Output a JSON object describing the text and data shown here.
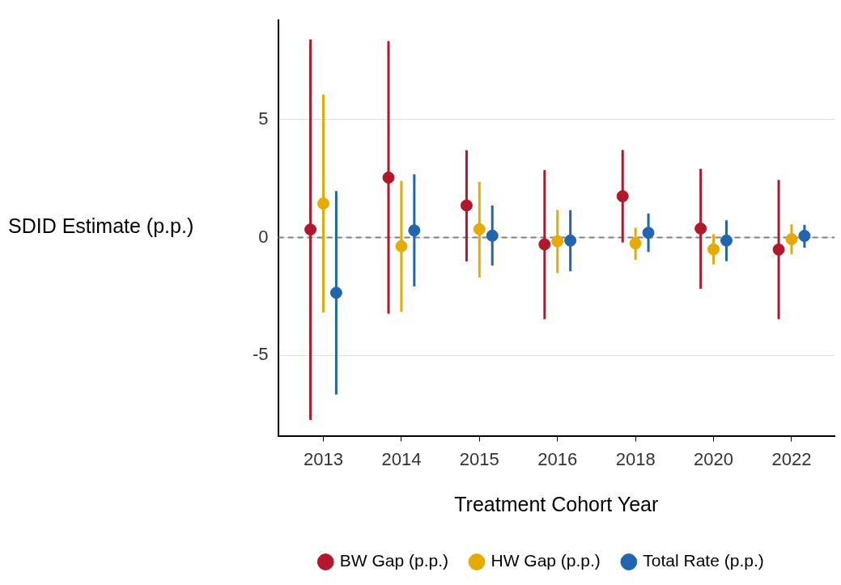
{
  "chart_data": {
    "type": "scatter",
    "xlabel": "Treatment Cohort Year",
    "ylabel": "SDID Estimate (p.p.)",
    "categories": [
      "2013",
      "2014",
      "2015",
      "2016",
      "2018",
      "2020",
      "2022"
    ],
    "series": [
      {
        "name": "BW Gap (p.p.)",
        "color": "#b2182b",
        "values": [
          0.34,
          2.54,
          1.36,
          -0.29,
          1.75,
          0.38,
          -0.51
        ],
        "errors": [
          [
            -7.73,
            8.39
          ],
          [
            -3.23,
            8.32
          ],
          [
            -1.01,
            3.7
          ],
          [
            -3.46,
            2.86
          ],
          [
            -0.21,
            3.71
          ],
          [
            -2.17,
            2.91
          ],
          [
            -3.46,
            2.44
          ]
        ]
      },
      {
        "name": "HW Gap (p.p.)",
        "color": "#e6ab02",
        "values": [
          1.44,
          -0.37,
          0.35,
          -0.16,
          -0.25,
          -0.5,
          -0.07
        ],
        "errors": [
          [
            -3.18,
            6.05
          ],
          [
            -3.15,
            2.4
          ],
          [
            -1.69,
            2.36
          ],
          [
            -1.51,
            1.17
          ],
          [
            -0.94,
            0.41
          ],
          [
            -1.14,
            0.14
          ],
          [
            -0.71,
            0.56
          ]
        ]
      },
      {
        "name": "Total Rate (p.p.)",
        "color": "#2166ac",
        "values": [
          -2.34,
          0.3,
          0.08,
          -0.13,
          0.2,
          -0.13,
          0.07
        ],
        "errors": [
          [
            -6.65,
            1.97
          ],
          [
            -2.07,
            2.68
          ],
          [
            -1.19,
            1.36
          ],
          [
            -1.43,
            1.16
          ],
          [
            -0.61,
            1.02
          ],
          [
            -1.0,
            0.73
          ],
          [
            -0.43,
            0.54
          ]
        ]
      }
    ],
    "ylim": [
      -8.4,
      9.2
    ],
    "yticks": [
      -5,
      0,
      5
    ],
    "grid": "y",
    "legend": "bottom",
    "marker": "circle",
    "ref_lines": [
      {
        "axis": "y",
        "value": 0,
        "color": "#808080",
        "line_style": "dashed"
      }
    ]
  }
}
